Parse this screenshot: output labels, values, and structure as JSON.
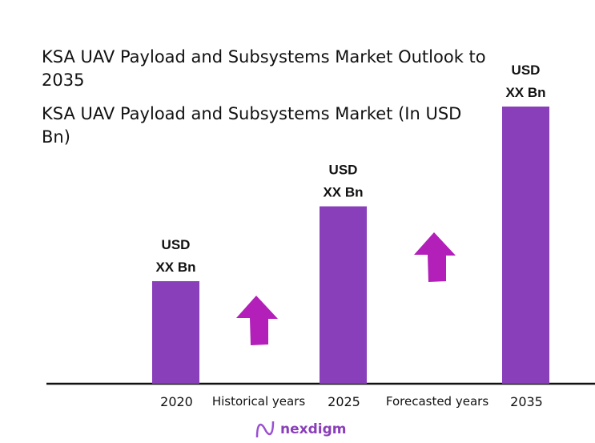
{
  "chart_data": {
    "type": "bar",
    "title": "KSA UAV Payload and Subsystems Market Outlook to 2035",
    "subtitle": "KSA UAV Payload and Subsystems Market (In USD Bn)",
    "categories": [
      "2020",
      "2025",
      "2035"
    ],
    "values_relative": [
      0.37,
      0.64,
      1.0
    ],
    "data_labels": [
      [
        "USD",
        "XX Bn"
      ],
      [
        "USD",
        "XX Bn"
      ],
      [
        "USD",
        "XX Bn"
      ]
    ],
    "period_labels": [
      "Historical years",
      "Forecasted years"
    ],
    "grid": false,
    "legend": "none",
    "colors": {
      "bar": "#8a3fba",
      "arrow": "#b21fb9",
      "axis": "#111111"
    }
  },
  "logo": {
    "text": "nexdigm"
  }
}
